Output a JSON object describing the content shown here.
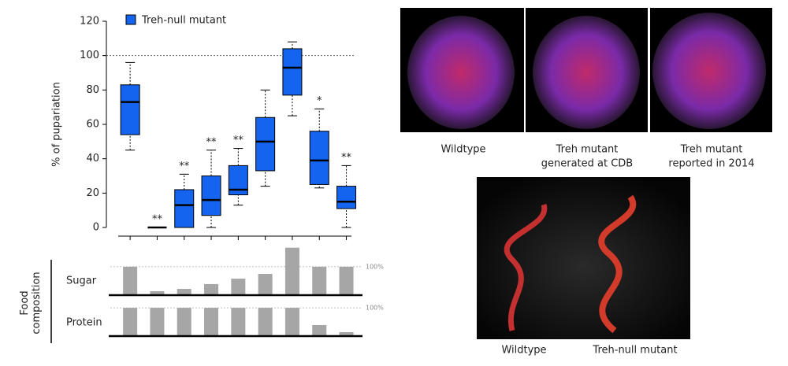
{
  "chart_data": [
    {
      "type": "box",
      "ylabel": "% of pupariation",
      "ylim": [
        0,
        120
      ],
      "yticks": [
        0,
        20,
        40,
        60,
        80,
        100,
        120
      ],
      "reference_line": 100,
      "series": [
        {
          "name": "Treh-null mutant",
          "color": "#1464f0",
          "boxes": [
            {
              "low": 45,
              "q1": 54,
              "median": 73,
              "q3": 83,
              "high": 96
            },
            {
              "low": 0,
              "q1": 0,
              "median": 0,
              "q3": 0,
              "high": 0
            },
            {
              "low": 0,
              "q1": 0,
              "median": 13,
              "q3": 22,
              "high": 31
            },
            {
              "low": 0,
              "q1": 7,
              "median": 16,
              "q3": 30,
              "high": 45
            },
            {
              "low": 13,
              "q1": 19,
              "median": 22,
              "q3": 36,
              "high": 46
            },
            {
              "low": 24,
              "q1": 33,
              "median": 50,
              "q3": 64,
              "high": 80
            },
            {
              "low": 65,
              "q1": 77,
              "median": 93,
              "q3": 104,
              "high": 108
            },
            {
              "low": 23,
              "q1": 25,
              "median": 39,
              "q3": 56,
              "high": 69
            },
            {
              "low": 0,
              "q1": 11,
              "median": 15,
              "q3": 24,
              "high": 36
            }
          ]
        }
      ],
      "annotations": [
        null,
        "**",
        "**",
        "**",
        "**",
        null,
        null,
        "*",
        "**"
      ]
    },
    {
      "type": "bar",
      "ylabel": [
        "Food",
        "composition"
      ],
      "color": "#a6a6a6",
      "series": [
        {
          "name": "Sugar",
          "values": [
            100,
            14,
            22,
            39,
            58,
            75,
            167,
            100,
            100
          ],
          "ylim": [
            0,
            180
          ],
          "yticks": [
            {
              "value": 100,
              "label": "100%"
            }
          ]
        },
        {
          "name": "Protein",
          "values": [
            100,
            100,
            100,
            100,
            100,
            100,
            100,
            39,
            14
          ],
          "ylim": [
            0,
            117
          ],
          "yticks": [
            {
              "value": 100,
              "label": "100%"
            }
          ]
        }
      ]
    }
  ],
  "images": {
    "top_panel": {
      "captions": [
        [
          "Wildtype"
        ],
        [
          "Treh mutant",
          "generated at CDB"
        ],
        [
          "Treh mutant",
          "reported in 2014"
        ]
      ]
    },
    "bottom_panel": {
      "captions": [
        [
          "Wildtype"
        ],
        [
          "Treh-null mutant"
        ]
      ]
    }
  }
}
